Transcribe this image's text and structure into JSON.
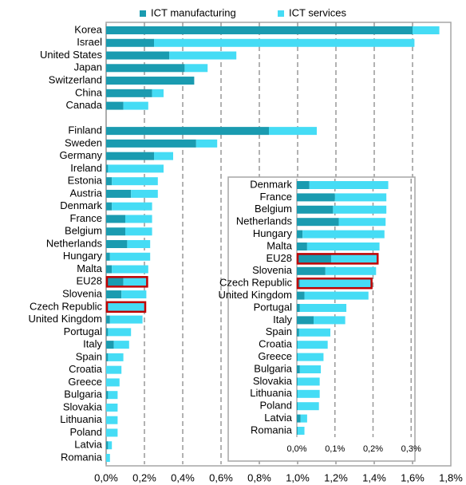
{
  "chart_data": [
    {
      "type": "bar",
      "orientation": "horizontal",
      "stacked": true,
      "legend": "top",
      "grid": true,
      "categories": [
        "Korea",
        "Israel",
        "United States",
        "Japan",
        "Switzerland",
        "China",
        "Canada",
        null,
        "Finland",
        "Sweden",
        "Germany",
        "Ireland",
        "Estonia",
        "Austria",
        "Denmark",
        "France",
        "Belgium",
        "Netherlands",
        "Hungary",
        "Malta",
        "EU28",
        "Slovenia",
        "Czech Republic",
        "United Kingdom",
        "Portugal",
        "Italy",
        "Spain",
        "Croatia",
        "Greece",
        "Bulgaria",
        "Slovakia",
        "Lithuania",
        "Poland",
        "Latvia",
        "Romania"
      ],
      "series": [
        {
          "name": "ICT manufacturing",
          "color": "#1a9bb0",
          "values": [
            1.6,
            0.25,
            0.33,
            0.41,
            0.46,
            0.24,
            0.09,
            null,
            0.85,
            0.47,
            0.25,
            0.01,
            0.03,
            0.13,
            0.03,
            0.1,
            0.1,
            0.11,
            0.02,
            0.03,
            0.09,
            0.08,
            0.01,
            0.02,
            0.01,
            0.04,
            0.01,
            0.0,
            0.0,
            0.01,
            0.0,
            0.0,
            0.0,
            0.01,
            0.0
          ]
        },
        {
          "name": "ICT services",
          "color": "#45dcf5",
          "values": [
            0.14,
            1.36,
            0.35,
            0.12,
            0.0,
            0.06,
            0.13,
            null,
            0.25,
            0.11,
            0.1,
            0.29,
            0.24,
            0.14,
            0.21,
            0.14,
            0.14,
            0.12,
            0.21,
            0.19,
            0.12,
            0.13,
            0.19,
            0.17,
            0.12,
            0.08,
            0.08,
            0.08,
            0.07,
            0.05,
            0.06,
            0.06,
            0.06,
            0.02,
            0.02
          ]
        }
      ],
      "highlight": [
        "EU28",
        "Czech Republic"
      ],
      "xlim": [
        0,
        1.8
      ],
      "xticks": [
        {
          "value": 0,
          "label": "0,0%"
        },
        {
          "value": 0.2,
          "label": "0,2%"
        },
        {
          "value": 0.4,
          "label": "0,4%"
        },
        {
          "value": 0.6,
          "label": "0,6%"
        },
        {
          "value": 0.8,
          "label": "0,8%"
        },
        {
          "value": 1.0,
          "label": "1,0%"
        },
        {
          "value": 1.2,
          "label": "1,2%"
        },
        {
          "value": 1.4,
          "label": "1,4%"
        },
        {
          "value": 1.6,
          "label": "1,6%"
        },
        {
          "value": 1.8,
          "label": "1,8%"
        }
      ]
    },
    {
      "type": "bar",
      "orientation": "horizontal",
      "stacked": true,
      "grid": true,
      "categories": [
        "Denmark",
        "France",
        "Belgium",
        "Netherlands",
        "Hungary",
        "Malta",
        "EU28",
        "Slovenia",
        "Czech Republic",
        "United Kingdom",
        "Portugal",
        "Italy",
        "Spain",
        "Croatia",
        "Greece",
        "Bulgaria",
        "Slovakia",
        "Lithuania",
        "Poland",
        "Latvia",
        "Romania"
      ],
      "series": [
        {
          "name": "ICT manufacturing",
          "color": "#1a9bb0",
          "values": [
            0.033,
            0.1,
            0.095,
            0.11,
            0.015,
            0.027,
            0.09,
            0.075,
            0.008,
            0.02,
            0.008,
            0.044,
            0.006,
            0.002,
            0.002,
            0.008,
            0.002,
            0.002,
            0.002,
            0.01,
            0.002
          ]
        },
        {
          "name": "ICT services",
          "color": "#45dcf5",
          "values": [
            0.207,
            0.135,
            0.14,
            0.123,
            0.215,
            0.19,
            0.12,
            0.133,
            0.186,
            0.168,
            0.122,
            0.083,
            0.082,
            0.079,
            0.068,
            0.055,
            0.058,
            0.058,
            0.056,
            0.017,
            0.018
          ]
        }
      ],
      "highlight": [
        "EU28",
        "Czech Republic"
      ],
      "xlim": [
        0,
        0.31
      ],
      "xticks": [
        {
          "value": 0,
          "label": "0,0%"
        },
        {
          "value": 0.1,
          "label": "0,1%"
        },
        {
          "value": 0.2,
          "label": "0,2%"
        },
        {
          "value": 0.3,
          "label": "0,3%"
        }
      ]
    }
  ]
}
